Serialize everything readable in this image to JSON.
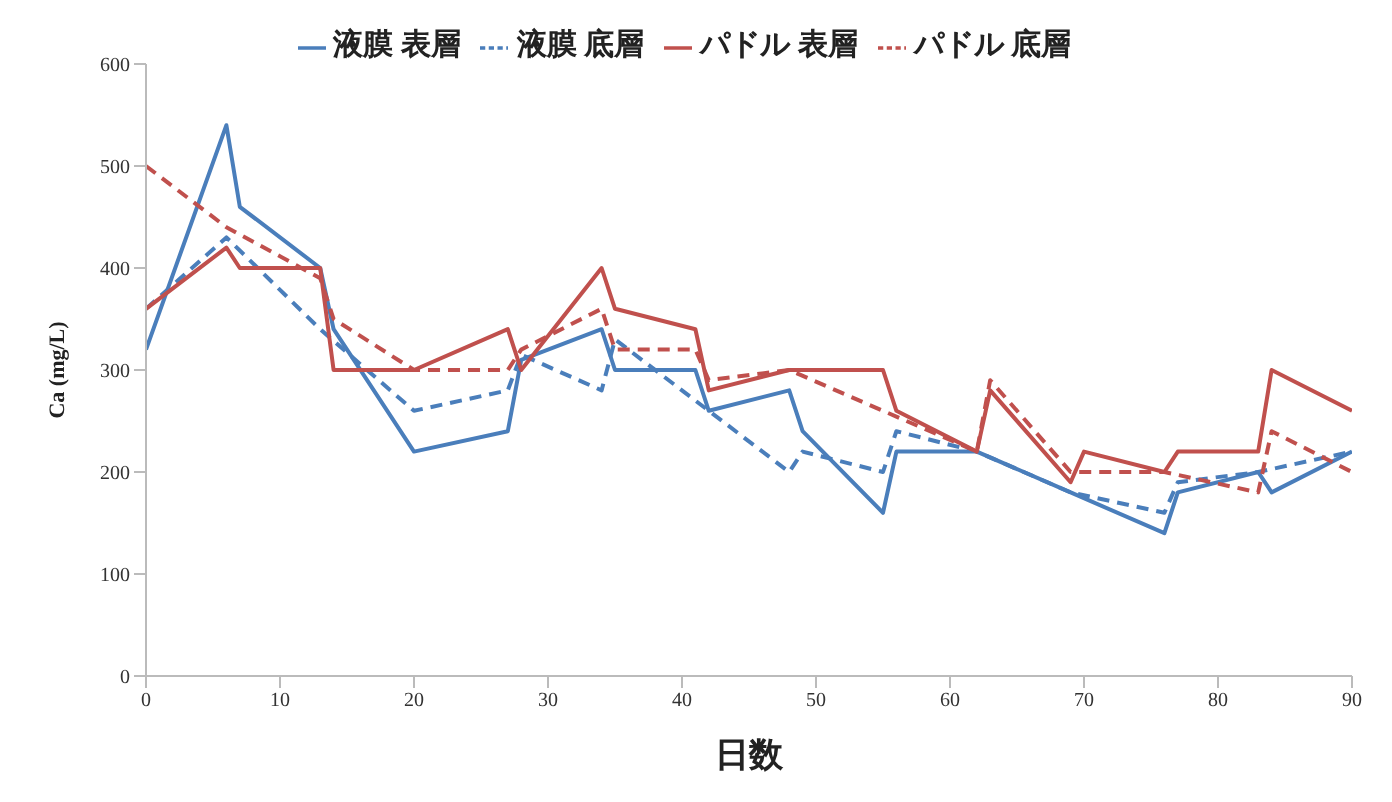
{
  "chart_data": {
    "type": "line",
    "xlabel": "日数",
    "ylabel": "Ca (mg/L)",
    "xlim": [
      0,
      90
    ],
    "xticks": [
      0,
      10,
      20,
      30,
      40,
      50,
      60,
      70,
      80,
      90
    ],
    "ylim": [
      0,
      600
    ],
    "yticks": [
      0,
      100,
      200,
      300,
      400,
      500,
      600
    ],
    "grid": false,
    "legend": "top",
    "marker": "none",
    "series": [
      {
        "name": "液膜 表層",
        "color": "#4a7ebb",
        "line_style": "solid",
        "x": [
          0,
          6,
          7,
          13,
          14,
          20,
          27,
          28,
          34,
          35,
          41,
          42,
          48,
          49,
          55,
          56,
          62,
          69,
          76,
          77,
          83,
          84,
          90
        ],
        "values": [
          320,
          540,
          460,
          400,
          340,
          220,
          240,
          310,
          340,
          300,
          300,
          260,
          280,
          240,
          160,
          220,
          220,
          180,
          140,
          180,
          200,
          180,
          220
        ]
      },
      {
        "name": "液膜 底層",
        "color": "#4a7ebb",
        "line_style": "dashed",
        "x": [
          0,
          6,
          13,
          20,
          27,
          28,
          34,
          35,
          42,
          48,
          49,
          55,
          56,
          62,
          69,
          76,
          77,
          83,
          90
        ],
        "values": [
          360,
          430,
          340,
          260,
          280,
          315,
          280,
          330,
          260,
          200,
          220,
          200,
          240,
          220,
          180,
          160,
          190,
          200,
          220
        ]
      },
      {
        "name": "パドル 表層",
        "color": "#c0504d",
        "line_style": "solid",
        "x": [
          0,
          6,
          7,
          13,
          14,
          20,
          27,
          28,
          34,
          35,
          41,
          42,
          48,
          55,
          56,
          62,
          63,
          69,
          70,
          76,
          77,
          83,
          84,
          90
        ],
        "values": [
          360,
          420,
          400,
          400,
          300,
          300,
          340,
          300,
          400,
          360,
          340,
          280,
          300,
          300,
          260,
          220,
          280,
          190,
          220,
          200,
          220,
          220,
          300,
          260
        ]
      },
      {
        "name": "パドル 底層",
        "color": "#c0504d",
        "line_style": "dashed",
        "x": [
          0,
          6,
          13,
          14,
          20,
          27,
          28,
          34,
          35,
          41,
          42,
          48,
          55,
          62,
          63,
          69,
          76,
          83,
          84,
          90
        ],
        "values": [
          500,
          440,
          390,
          350,
          300,
          300,
          320,
          360,
          320,
          320,
          290,
          300,
          260,
          220,
          290,
          200,
          200,
          180,
          240,
          200
        ]
      }
    ]
  }
}
